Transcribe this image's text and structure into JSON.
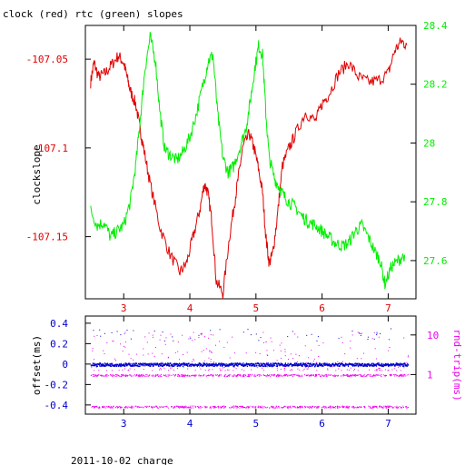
{
  "title": "clock (red) rtc (green) slopes",
  "footer": "2011-10-02 charge",
  "colors": {
    "red": "#e00000",
    "green": "#00ee00",
    "blue": "#0000cc",
    "magenta": "#ee00ee",
    "axis": "#000000"
  },
  "chart_data": [
    {
      "type": "line",
      "title": "clock (red) rtc (green) slopes",
      "ylabel": "clockslope",
      "xlim": [
        2.42,
        7.42
      ],
      "ylim": [
        -107.185,
        -107.031
      ],
      "y2lim": [
        27.47,
        28.4
      ],
      "xticks": [
        3,
        4,
        5,
        6,
        7
      ],
      "xticklabels": [
        "3",
        "4",
        "5",
        "6",
        "7"
      ],
      "yticks": [
        -107.05,
        -107.1,
        -107.15
      ],
      "yticklabels": [
        "-107.05",
        "-107.1",
        "-107.15"
      ],
      "y2ticks": [
        27.6,
        27.8,
        28.0,
        28.2,
        28.4
      ],
      "y2ticklabels": [
        "27.6",
        "27.8",
        "28",
        "28.2",
        "28.4"
      ],
      "series": [
        {
          "axis": "left",
          "color": "#e00000",
          "x": [
            2.5,
            2.55,
            2.62,
            2.72,
            2.82,
            2.92,
            3.0,
            3.05,
            3.1,
            3.18,
            3.25,
            3.3,
            3.4,
            3.55,
            3.7,
            3.85,
            3.95,
            4.05,
            4.15,
            4.22,
            4.27,
            4.33,
            4.4,
            4.5,
            4.6,
            4.68,
            4.74,
            4.8,
            4.9,
            4.97,
            5.03,
            5.1,
            5.15,
            5.2,
            5.25,
            5.32,
            5.4,
            5.5,
            5.6,
            5.75,
            5.9,
            6.0,
            6.1,
            6.25,
            6.4,
            6.55,
            6.7,
            6.85,
            7.0,
            7.1,
            7.2,
            7.28
          ],
          "y": [
            -107.063,
            -107.052,
            -107.06,
            -107.058,
            -107.053,
            -107.048,
            -107.052,
            -107.06,
            -107.068,
            -107.075,
            -107.09,
            -107.1,
            -107.12,
            -107.145,
            -107.16,
            -107.17,
            -107.165,
            -107.15,
            -107.135,
            -107.12,
            -107.125,
            -107.14,
            -107.175,
            -107.182,
            -107.15,
            -107.13,
            -107.115,
            -107.1,
            -107.092,
            -107.1,
            -107.11,
            -107.125,
            -107.15,
            -107.165,
            -107.16,
            -107.14,
            -107.11,
            -107.1,
            -107.092,
            -107.08,
            -107.085,
            -107.075,
            -107.07,
            -107.058,
            -107.052,
            -107.06,
            -107.063,
            -107.062,
            -107.058,
            -107.045,
            -107.04,
            -107.042
          ]
        },
        {
          "axis": "right",
          "color": "#00ee00",
          "x": [
            2.5,
            2.6,
            2.7,
            2.8,
            2.9,
            3.0,
            3.1,
            3.18,
            3.25,
            3.32,
            3.4,
            3.48,
            3.55,
            3.62,
            3.7,
            3.8,
            3.9,
            4.0,
            4.1,
            4.2,
            4.28,
            4.35,
            4.42,
            4.5,
            4.58,
            4.66,
            4.75,
            4.85,
            4.92,
            4.98,
            5.04,
            5.1,
            5.15,
            5.2,
            5.28,
            5.35,
            5.42,
            5.5,
            5.6,
            5.7,
            5.8,
            5.9,
            6.0,
            6.1,
            6.2,
            6.3,
            6.4,
            6.5,
            6.6,
            6.7,
            6.8,
            6.88,
            6.95,
            7.05,
            7.15,
            7.25
          ],
          "y": [
            27.77,
            27.72,
            27.73,
            27.68,
            27.7,
            27.72,
            27.8,
            27.92,
            28.08,
            28.25,
            28.36,
            28.28,
            28.1,
            27.98,
            27.96,
            27.94,
            27.97,
            28.02,
            28.1,
            28.2,
            28.28,
            28.3,
            28.1,
            27.95,
            27.9,
            27.92,
            27.98,
            28.05,
            28.15,
            28.25,
            28.33,
            28.3,
            28.1,
            27.95,
            27.88,
            27.85,
            27.82,
            27.8,
            27.78,
            27.75,
            27.73,
            27.72,
            27.7,
            27.68,
            27.66,
            27.65,
            27.66,
            27.7,
            27.72,
            27.68,
            27.63,
            27.6,
            27.52,
            27.58,
            27.6,
            27.62
          ]
        }
      ]
    },
    {
      "type": "scatter",
      "ylabel": "offset(ms)",
      "y2label": "rnd-trip(ms)",
      "xlim": [
        2.42,
        7.42
      ],
      "ylim": [
        -0.49,
        0.47
      ],
      "y2_scale": "log",
      "y2lim": [
        0.1,
        30
      ],
      "xticks": [
        3,
        4,
        5,
        6,
        7
      ],
      "xticklabels": [
        "3",
        "4",
        "5",
        "6",
        "7"
      ],
      "yticks": [
        0.4,
        0.2,
        0,
        -0.2,
        -0.4
      ],
      "yticklabels": [
        "0.4",
        "0.2",
        "0",
        "-0.2",
        "-0.4"
      ],
      "y2ticks": [
        10,
        1
      ],
      "y2ticklabels": [
        "10",
        "1"
      ],
      "series": [
        {
          "axis": "left",
          "color": "#0000cc",
          "x_range": [
            2.5,
            7.3
          ],
          "y_center": 0.0,
          "y_spread": 0.015,
          "scatter_outliers": 0.35
        },
        {
          "axis": "right",
          "color": "#ee00ee",
          "x_range": [
            2.5,
            7.3
          ],
          "y_bands": [
            0.97,
            0.155
          ],
          "y_sparse_range": [
            1.3,
            12
          ]
        }
      ]
    }
  ]
}
